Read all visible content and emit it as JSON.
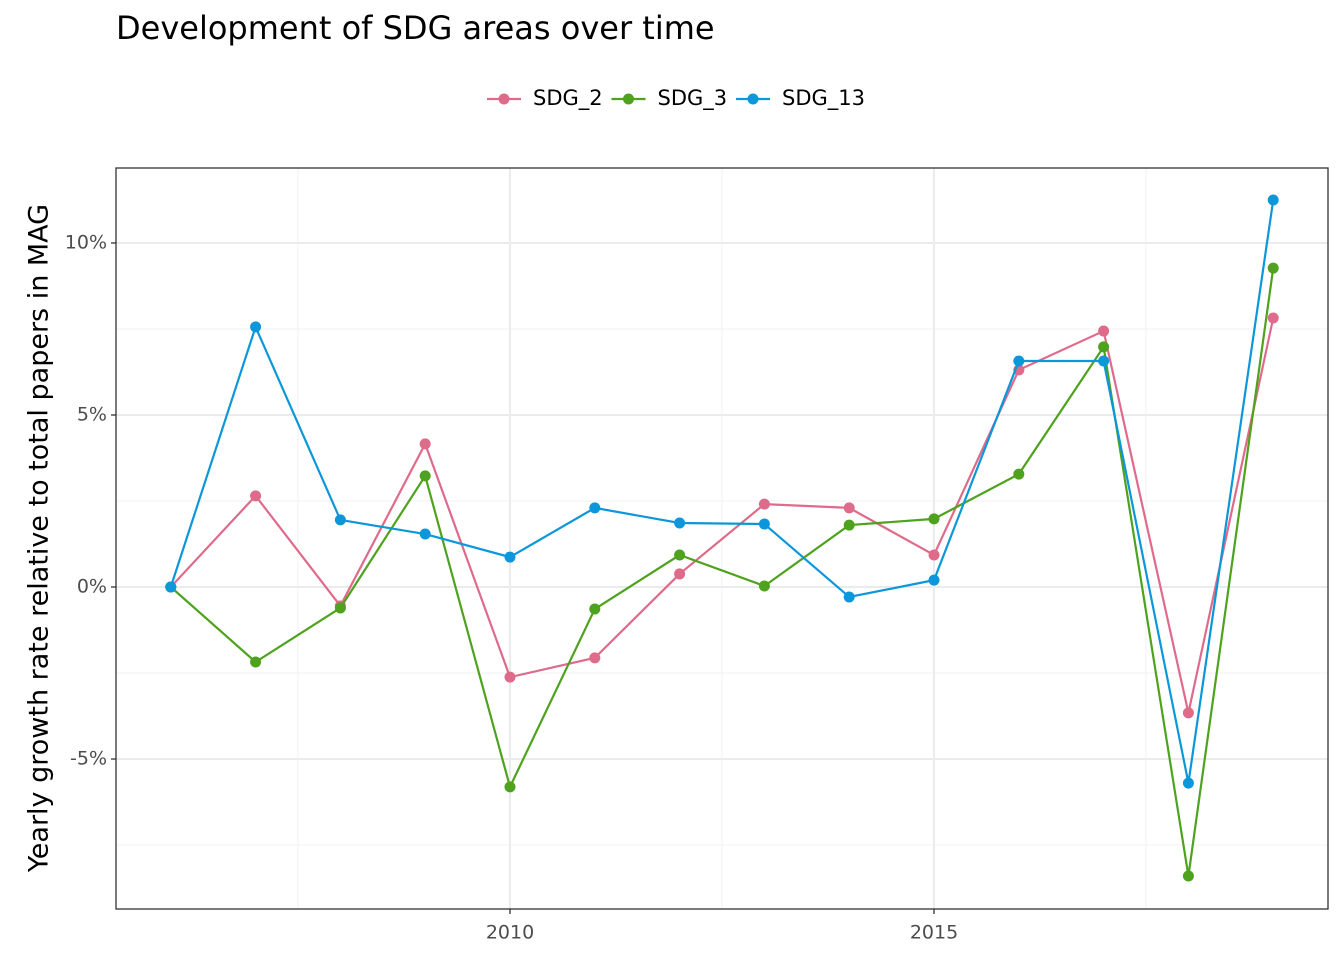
{
  "chart_data": {
    "type": "line",
    "title": "Development of SDG areas over time",
    "y_label": "Yearly growth rate relative to total papers in MAG",
    "x": [
      2006,
      2007,
      2008,
      2009,
      2010,
      2011,
      2012,
      2013,
      2014,
      2015,
      2016,
      2017,
      2018,
      2019
    ],
    "series": [
      {
        "name": "SDG_2",
        "color": "#df6b8b",
        "values": [
          0,
          2.65,
          -0.55,
          4.16,
          -2.62,
          -2.06,
          0.38,
          2.41,
          2.3,
          0.93,
          6.31,
          7.44,
          -3.66,
          7.82
        ]
      },
      {
        "name": "SDG_3",
        "color": "#4ea21d",
        "values": [
          0,
          -2.18,
          -0.61,
          3.23,
          -5.81,
          -0.64,
          0.93,
          0.03,
          1.8,
          1.98,
          3.28,
          6.98,
          -8.4,
          9.27
        ]
      },
      {
        "name": "SDG_13",
        "color": "#0b97d9",
        "values": [
          0,
          7.56,
          1.95,
          1.54,
          0.87,
          2.3,
          1.86,
          1.83,
          -0.29,
          0.2,
          6.57,
          6.57,
          -5.7,
          11.25
        ]
      }
    ],
    "xlim": [
      2005.354,
      2019.646
    ],
    "xticks": [
      2010,
      2015
    ],
    "ylim": [
      -9.36,
      12.18
    ],
    "yticks": [
      {
        "value": -5,
        "label": "-5%"
      },
      {
        "value": 0,
        "label": "0%"
      },
      {
        "value": 5,
        "label": "5%"
      },
      {
        "value": 10,
        "label": "10%"
      }
    ],
    "grid": true,
    "legend": "top"
  }
}
